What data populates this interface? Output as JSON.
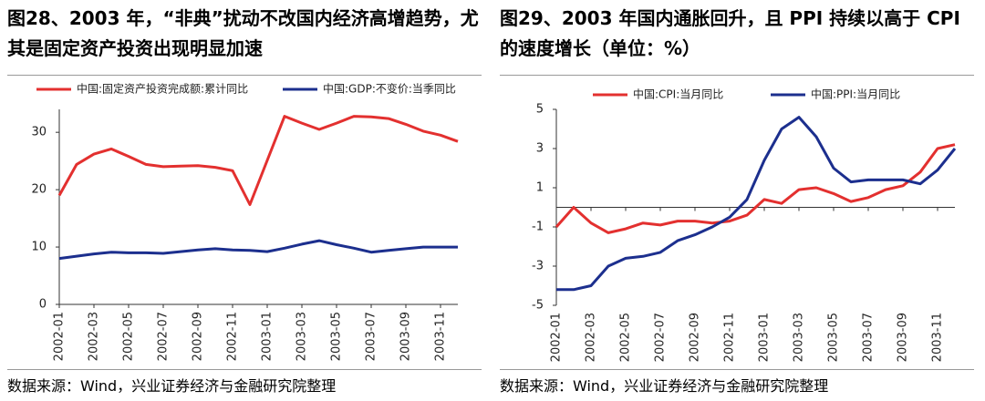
{
  "chart_data": [
    {
      "type": "line",
      "title": "图28、2003 年，“非典”扰动不改国内经济高增趋势，尤其是固定资产投资出现明显加速",
      "source": "数据来源：Wind，兴业证券经济与金融研究院整理",
      "categories": [
        "2002-01",
        null,
        "2002-03",
        null,
        "2002-05",
        null,
        "2002-07",
        null,
        "2002-09",
        null,
        "2002-11",
        null,
        "2003-01",
        null,
        "2003-03",
        null,
        "2003-05",
        null,
        "2003-07",
        null,
        "2003-09",
        null,
        "2003-11",
        null
      ],
      "series": [
        {
          "name": "中国:固定资产投资完成额:累计同比",
          "color": "#e3302f",
          "values": [
            19,
            24.4,
            26.2,
            27.1,
            25.8,
            24.4,
            24.0,
            24.1,
            24.2,
            23.9,
            23.3,
            17.4,
            25.1,
            32.8,
            31.6,
            30.5,
            31.6,
            32.8,
            32.7,
            32.4,
            31.4,
            30.2,
            29.5,
            28.4
          ]
        },
        {
          "name": "中国:GDP:不变价:当季同比",
          "color": "#1c2f8e",
          "values": [
            8.0,
            8.4,
            8.8,
            9.1,
            9.0,
            9.0,
            8.9,
            9.2,
            9.5,
            9.7,
            9.5,
            9.4,
            9.2,
            9.8,
            10.5,
            11.1,
            10.4,
            9.8,
            9.1,
            9.4,
            9.7,
            10.0,
            10.0,
            10.0
          ]
        }
      ],
      "ylim": [
        0,
        34
      ],
      "yticks": [
        0,
        10,
        20,
        30
      ],
      "grid": false,
      "legend": "top"
    },
    {
      "type": "line",
      "title": "图29、2003 年国内通胀回升，且 PPI 持续以高于 CPI 的速度增长（单位：%）",
      "source": "数据来源：Wind，兴业证券经济与金融研究院整理",
      "categories": [
        "2002-01",
        null,
        "2002-03",
        null,
        "2002-05",
        null,
        "2002-07",
        null,
        "2002-09",
        null,
        "2002-11",
        null,
        "2003-01",
        null,
        "2003-03",
        null,
        "2003-05",
        null,
        "2003-07",
        null,
        "2003-09",
        null,
        "2003-11",
        null
      ],
      "series": [
        {
          "name": "中国:CPI:当月同比",
          "color": "#e3302f",
          "values": [
            -1.0,
            0.0,
            -0.8,
            -1.3,
            -1.1,
            -0.8,
            -0.9,
            -0.7,
            -0.7,
            -0.8,
            -0.7,
            -0.4,
            0.4,
            0.2,
            0.9,
            1.0,
            0.7,
            0.3,
            0.5,
            0.9,
            1.1,
            1.8,
            3.0,
            3.2
          ]
        },
        {
          "name": "中国:PPI:当月同比",
          "color": "#1c2f8e",
          "values": [
            -4.2,
            -4.2,
            -4.0,
            -3.0,
            -2.6,
            -2.5,
            -2.3,
            -1.7,
            -1.4,
            -1.0,
            -0.5,
            0.4,
            2.4,
            4.0,
            4.6,
            3.6,
            2.0,
            1.3,
            1.4,
            1.4,
            1.4,
            1.2,
            1.9,
            3.0
          ]
        }
      ],
      "ylim": [
        -5,
        5
      ],
      "yticks": [
        -5,
        -3,
        -1,
        1,
        3,
        5
      ],
      "grid": false,
      "legend": "top"
    }
  ]
}
